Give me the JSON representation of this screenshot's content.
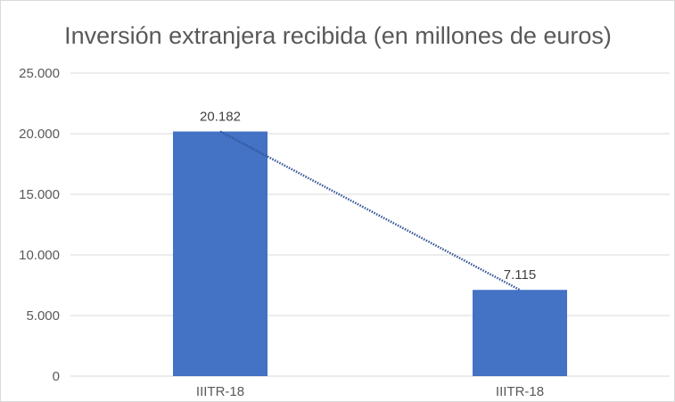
{
  "chart_data": {
    "type": "bar",
    "title": "Inversión extranjera recibida (en millones de euros)",
    "xlabel": "",
    "ylabel": "",
    "categories": [
      "IIITR-18",
      "IIITR-18"
    ],
    "values": [
      20182,
      7115
    ],
    "value_labels": [
      "20.182",
      "7.115"
    ],
    "ylim": [
      0,
      25000
    ],
    "yticks": [
      0,
      5000,
      10000,
      15000,
      20000,
      25000
    ],
    "ytick_labels": [
      "0",
      "5.000",
      "10.000",
      "15.000",
      "20.000",
      "25.000"
    ],
    "grid": true,
    "legend": "none",
    "trendline": "linear dotted",
    "colors": {
      "bar": "#4472C4",
      "trendline": "#2F5597",
      "grid": "#D9D9D9",
      "text": "#595959"
    }
  }
}
